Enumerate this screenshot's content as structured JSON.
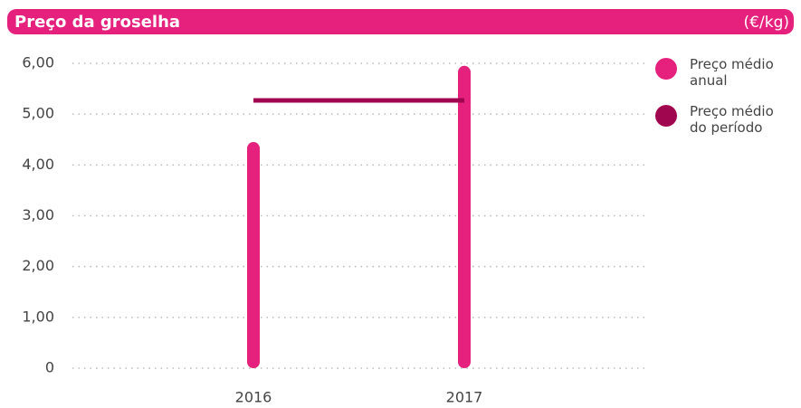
{
  "chart_data": {
    "type": "bar",
    "title": "Preço da groselha",
    "unit": "(€/kg)",
    "categories": [
      "2016",
      "2017"
    ],
    "series": [
      {
        "name": "Preço médio anual",
        "color": "#e6207d",
        "type": "bar",
        "values": [
          4.45,
          5.95
        ]
      },
      {
        "name": "Preço médio do período",
        "color": "#a0064f",
        "type": "line",
        "values": [
          5.27,
          5.27
        ]
      }
    ],
    "ylim": [
      0,
      6
    ],
    "yticks": [
      0,
      {
        "value": 1,
        "label": "1,00"
      },
      {
        "value": 2,
        "label": "2,00"
      },
      {
        "value": 3,
        "label": "3,00"
      },
      {
        "value": 4,
        "label": "4,00"
      },
      {
        "value": 5,
        "label": "5,00"
      },
      {
        "value": 6,
        "label": "6,00"
      }
    ],
    "grid": true,
    "legend": "right"
  }
}
